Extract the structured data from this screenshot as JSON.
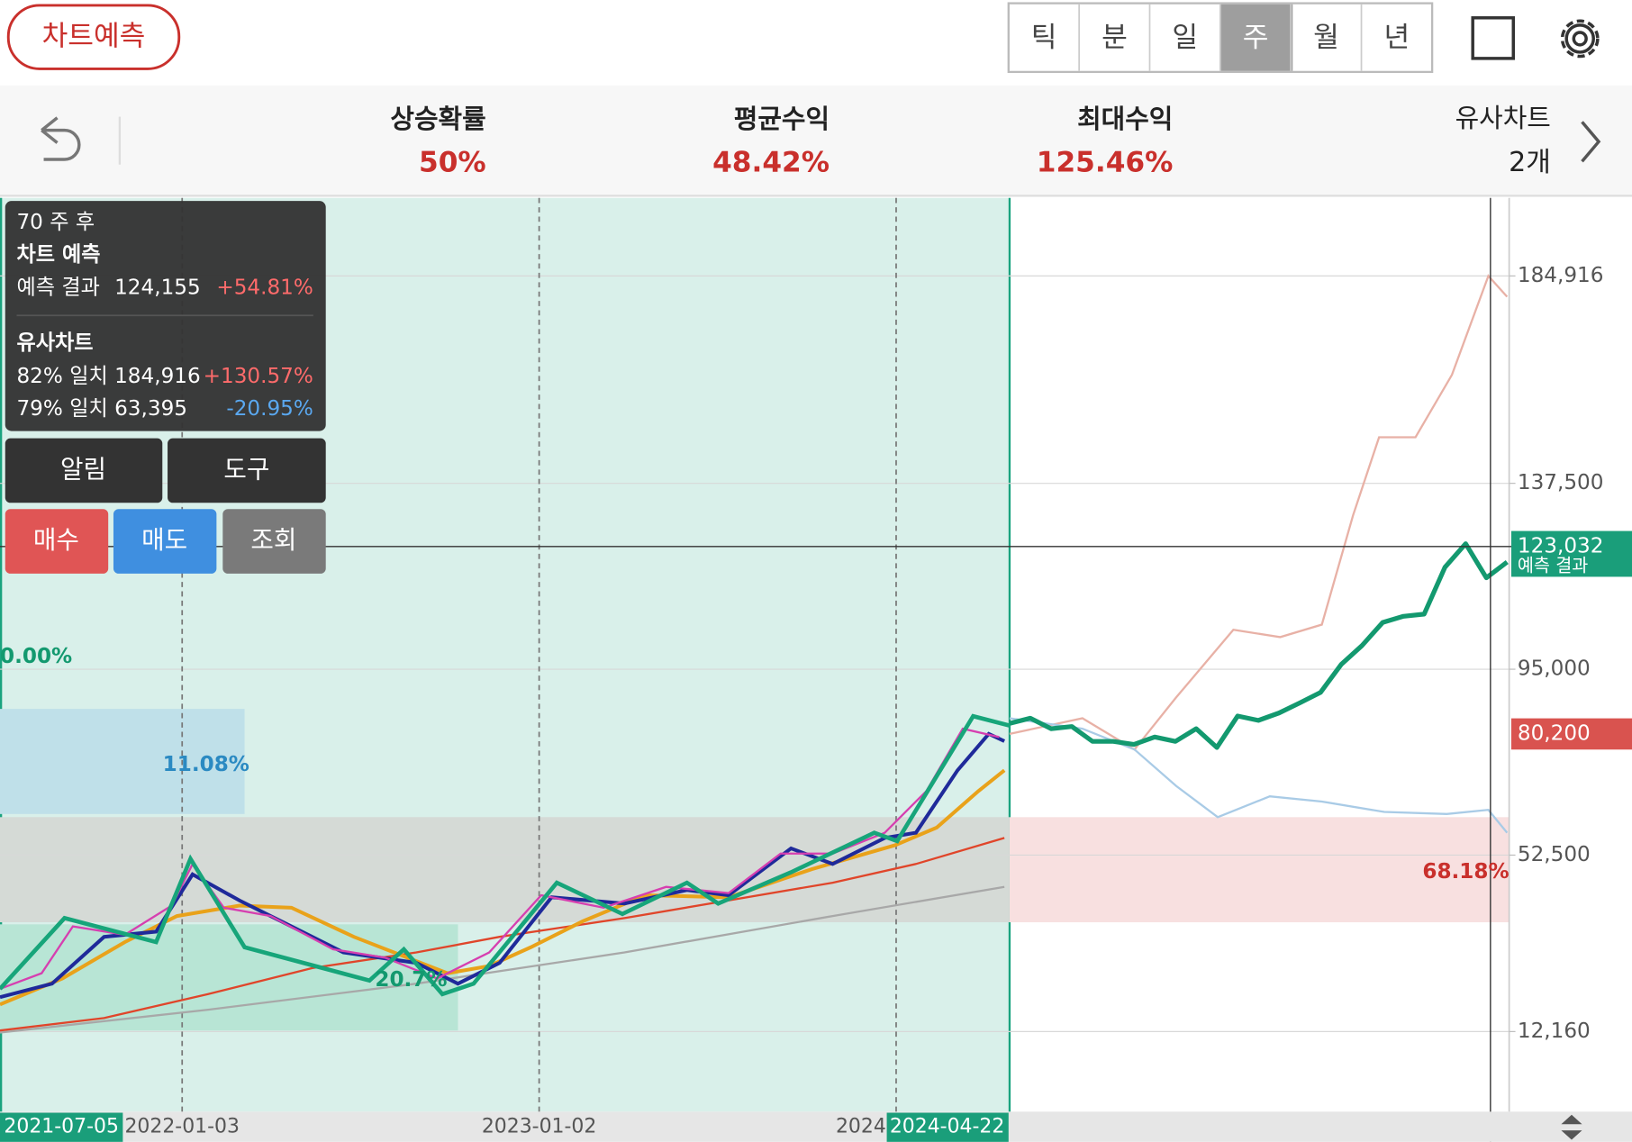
{
  "app_button": "차트예측",
  "tabs": [
    "틱",
    "분",
    "일",
    "주",
    "월",
    "년"
  ],
  "stats": [
    {
      "label": "상승확률",
      "value": "50%"
    },
    {
      "label": "평균수익",
      "value": "48.42%"
    },
    {
      "label": "최대수익",
      "value": "125.46%"
    }
  ],
  "similar": {
    "label": "유사차트",
    "count": "2개"
  },
  "tooltip": {
    "horizon": "70 주 후",
    "forecast_title": "차트 예측",
    "forecast_row": {
      "label": "예측 결과",
      "price": "124,155",
      "change": "+54.81%"
    },
    "similar_title": "유사차트",
    "similar_rows": [
      {
        "label": "82% 일치",
        "price": "184,916",
        "change": "+130.57%"
      },
      {
        "label": "79% 일치",
        "price": "63,395",
        "change": "-20.95%"
      }
    ]
  },
  "buttons": [
    "알림",
    "도구",
    "매수",
    "매도",
    "조회"
  ],
  "chart_data": {
    "type": "line",
    "ylim": [
      -6160,
      202760
    ],
    "yticks": [
      {
        "value": 184916,
        "label": "184,916"
      },
      {
        "value": 137500,
        "label": "137,500"
      },
      {
        "value": 95000,
        "label": "95,000"
      },
      {
        "value": 52500,
        "label": "52,500"
      },
      {
        "value": 12160,
        "label": "12,160"
      }
    ],
    "x_labels": [
      "2021-07-05",
      "2022-01-03",
      "2023-01-02",
      "2024",
      "2024-04-22"
    ],
    "annotations": [
      "0.00%",
      "11.08%",
      "20.7%",
      "68.18%"
    ],
    "series": [
      {
        "name": "예측 결과",
        "color": "#13996f",
        "values": [
          82600,
          83800,
          81400,
          81900,
          78500,
          78500,
          77800,
          79500,
          78500,
          81400,
          77100,
          84300,
          83300,
          85000,
          87300,
          89700,
          96100,
          100400,
          105700,
          107100,
          107600,
          118300,
          123700,
          115900,
          119500
        ]
      }
    ],
    "markers": [
      {
        "value": 123032,
        "label": "123,032",
        "color": "#1a9e7a"
      },
      {
        "value": 80200,
        "label": "80,200",
        "color": "#d9534f"
      }
    ]
  }
}
